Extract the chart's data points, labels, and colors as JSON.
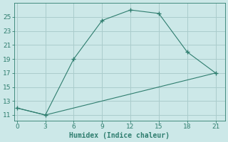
{
  "line1_x": [
    0,
    3,
    6,
    9,
    12,
    15,
    18,
    21
  ],
  "line1_y": [
    12,
    11,
    19,
    24.5,
    26,
    25.5,
    20,
    17
  ],
  "line2_x": [
    0,
    3,
    21
  ],
  "line2_y": [
    12,
    11,
    17
  ],
  "line_color": "#2e7d6e",
  "bg_color": "#cce8e8",
  "grid_color": "#aacccc",
  "xlabel": "Humidex (Indice chaleur)",
  "xticks": [
    0,
    3,
    6,
    9,
    12,
    15,
    18,
    21
  ],
  "yticks": [
    11,
    13,
    15,
    17,
    19,
    21,
    23,
    25
  ],
  "xlim": [
    -0.3,
    22
  ],
  "ylim": [
    10.2,
    27
  ]
}
